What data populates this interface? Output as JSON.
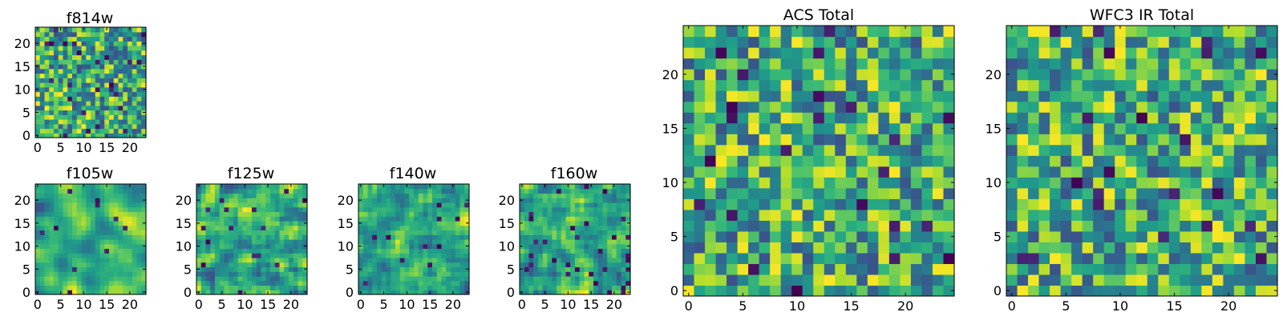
{
  "chart_data": [
    {
      "type": "heatmap",
      "title": "f814w",
      "grid": 24,
      "x_ticks": [
        "0",
        "5",
        "10",
        "15",
        "20"
      ],
      "y_ticks": [
        "0",
        "5",
        "10",
        "15",
        "20"
      ],
      "colormap": "viridis",
      "seed": 11,
      "smoothness": 0,
      "dark_fraction": 0.04
    },
    {
      "type": "heatmap",
      "title": "f105w",
      "grid": 24,
      "x_ticks": [
        "0",
        "5",
        "10",
        "15",
        "20"
      ],
      "y_ticks": [
        "0",
        "5",
        "10",
        "15",
        "20"
      ],
      "colormap": "viridis",
      "seed": 23,
      "smoothness": 2,
      "dark_fraction": 0.02
    },
    {
      "type": "heatmap",
      "title": "f125w",
      "grid": 24,
      "x_ticks": [
        "0",
        "5",
        "10",
        "15",
        "20"
      ],
      "y_ticks": [
        "0",
        "5",
        "10",
        "15",
        "20"
      ],
      "colormap": "viridis",
      "seed": 37,
      "smoothness": 1,
      "dark_fraction": 0.02
    },
    {
      "type": "heatmap",
      "title": "f140w",
      "grid": 24,
      "x_ticks": [
        "0",
        "5",
        "10",
        "15",
        "20"
      ],
      "y_ticks": [
        "0",
        "5",
        "10",
        "15",
        "20"
      ],
      "colormap": "viridis",
      "seed": 41,
      "smoothness": 1,
      "dark_fraction": 0.03
    },
    {
      "type": "heatmap",
      "title": "f160w",
      "grid": 24,
      "x_ticks": [
        "0",
        "5",
        "10",
        "15",
        "20"
      ],
      "y_ticks": [
        "0",
        "5",
        "10",
        "15",
        "20"
      ],
      "colormap": "viridis",
      "seed": 53,
      "smoothness": 1,
      "dark_fraction": 0.04
    },
    {
      "type": "heatmap",
      "title": "ACS Total",
      "grid": 25,
      "x_ticks": [
        "0",
        "5",
        "10",
        "15",
        "20"
      ],
      "y_ticks": [
        "0",
        "5",
        "10",
        "15",
        "20"
      ],
      "colormap": "viridis",
      "seed": 67,
      "smoothness": 0,
      "dark_fraction": 0.03
    },
    {
      "type": "heatmap",
      "title": "WFC3 IR Total",
      "grid": 25,
      "x_ticks": [
        "0",
        "5",
        "10",
        "15",
        "20"
      ],
      "y_ticks": [
        "0",
        "5",
        "10",
        "15",
        "20"
      ],
      "colormap": "viridis",
      "seed": 79,
      "smoothness": 0,
      "dark_fraction": 0.03
    }
  ]
}
